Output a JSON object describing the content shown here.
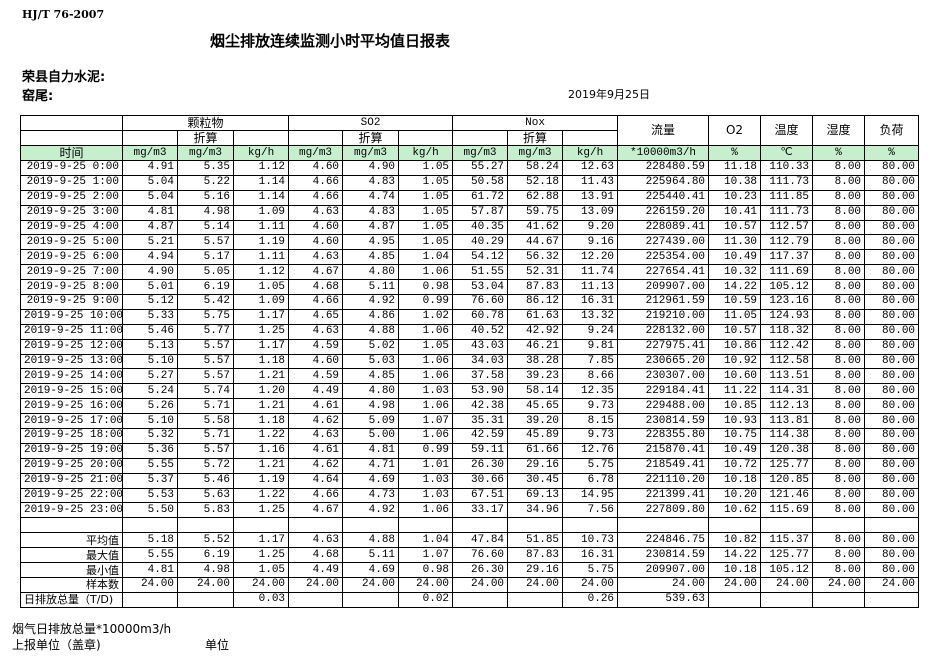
{
  "header": {
    "standard": "HJ/T  76-2007",
    "title": "烟尘排放连续监测小时平均值日报表",
    "company": "荣县自力水泥:",
    "location": "窑尾:",
    "date": "2019年9月25日"
  },
  "columns": {
    "groups": [
      "颗粒物",
      "SO2",
      "Nox"
    ],
    "converted": "折算",
    "flow": "流量",
    "o2": "O2",
    "temp": "温度",
    "humidity": "湿度",
    "load": "负荷",
    "time": "时间",
    "units": [
      "mg/m3",
      "mg/m3",
      "kg/h",
      "mg/m3",
      "mg/m3",
      "kg/h",
      "mg/m3",
      "mg/m3",
      "kg/h",
      "*10000m3/h",
      "%",
      "℃",
      "%",
      "%"
    ]
  },
  "rows": [
    [
      "2019-9-25 0:00",
      "4.91",
      "5.35",
      "1.12",
      "4.60",
      "4.90",
      "1.05",
      "55.27",
      "58.24",
      "12.63",
      "228480.59",
      "11.18",
      "110.33",
      "8.00",
      "80.00"
    ],
    [
      "2019-9-25 1:00",
      "5.04",
      "5.22",
      "1.14",
      "4.66",
      "4.83",
      "1.05",
      "50.58",
      "52.18",
      "11.43",
      "225964.80",
      "10.38",
      "111.73",
      "8.00",
      "80.00"
    ],
    [
      "2019-9-25 2:00",
      "5.04",
      "5.16",
      "1.14",
      "4.66",
      "4.74",
      "1.05",
      "61.72",
      "62.88",
      "13.91",
      "225440.41",
      "10.23",
      "111.85",
      "8.00",
      "80.00"
    ],
    [
      "2019-9-25 3:00",
      "4.81",
      "4.98",
      "1.09",
      "4.63",
      "4.83",
      "1.05",
      "57.87",
      "59.75",
      "13.09",
      "226159.20",
      "10.41",
      "111.73",
      "8.00",
      "80.00"
    ],
    [
      "2019-9-25 4:00",
      "4.87",
      "5.14",
      "1.11",
      "4.60",
      "4.87",
      "1.05",
      "40.35",
      "41.62",
      "9.20",
      "228089.41",
      "10.57",
      "112.57",
      "8.00",
      "80.00"
    ],
    [
      "2019-9-25 5:00",
      "5.21",
      "5.57",
      "1.19",
      "4.60",
      "4.95",
      "1.05",
      "40.29",
      "44.67",
      "9.16",
      "227439.00",
      "11.30",
      "112.79",
      "8.00",
      "80.00"
    ],
    [
      "2019-9-25 6:00",
      "4.94",
      "5.17",
      "1.11",
      "4.63",
      "4.85",
      "1.04",
      "54.12",
      "56.32",
      "12.20",
      "225354.00",
      "10.49",
      "117.37",
      "8.00",
      "80.00"
    ],
    [
      "2019-9-25 7:00",
      "4.90",
      "5.05",
      "1.12",
      "4.67",
      "4.80",
      "1.06",
      "51.55",
      "52.31",
      "11.74",
      "227654.41",
      "10.32",
      "111.69",
      "8.00",
      "80.00"
    ],
    [
      "2019-9-25 8:00",
      "5.01",
      "6.19",
      "1.05",
      "4.68",
      "5.11",
      "0.98",
      "53.04",
      "87.83",
      "11.13",
      "209907.00",
      "14.22",
      "105.12",
      "8.00",
      "80.00"
    ],
    [
      "2019-9-25 9:00",
      "5.12",
      "5.42",
      "1.09",
      "4.66",
      "4.92",
      "0.99",
      "76.60",
      "86.12",
      "16.31",
      "212961.59",
      "10.59",
      "123.16",
      "8.00",
      "80.00"
    ],
    [
      "2019-9-25 10:00",
      "5.33",
      "5.75",
      "1.17",
      "4.65",
      "4.86",
      "1.02",
      "60.78",
      "61.63",
      "13.32",
      "219210.00",
      "11.05",
      "124.93",
      "8.00",
      "80.00"
    ],
    [
      "2019-9-25 11:00",
      "5.46",
      "5.77",
      "1.25",
      "4.63",
      "4.88",
      "1.06",
      "40.52",
      "42.92",
      "9.24",
      "228132.00",
      "10.57",
      "118.32",
      "8.00",
      "80.00"
    ],
    [
      "2019-9-25 12:00",
      "5.13",
      "5.57",
      "1.17",
      "4.59",
      "5.02",
      "1.05",
      "43.03",
      "46.21",
      "9.81",
      "227975.41",
      "10.86",
      "112.42",
      "8.00",
      "80.00"
    ],
    [
      "2019-9-25 13:00",
      "5.10",
      "5.57",
      "1.18",
      "4.60",
      "5.03",
      "1.06",
      "34.03",
      "38.28",
      "7.85",
      "230665.20",
      "10.92",
      "112.58",
      "8.00",
      "80.00"
    ],
    [
      "2019-9-25 14:00",
      "5.27",
      "5.57",
      "1.21",
      "4.59",
      "4.85",
      "1.06",
      "37.58",
      "39.23",
      "8.66",
      "230307.00",
      "10.60",
      "113.51",
      "8.00",
      "80.00"
    ],
    [
      "2019-9-25 15:00",
      "5.24",
      "5.74",
      "1.20",
      "4.49",
      "4.80",
      "1.03",
      "53.90",
      "58.14",
      "12.35",
      "229184.41",
      "11.22",
      "114.31",
      "8.00",
      "80.00"
    ],
    [
      "2019-9-25 16:00",
      "5.26",
      "5.71",
      "1.21",
      "4.61",
      "4.98",
      "1.06",
      "42.38",
      "45.65",
      "9.73",
      "229488.00",
      "10.85",
      "112.13",
      "8.00",
      "80.00"
    ],
    [
      "2019-9-25 17:00",
      "5.10",
      "5.58",
      "1.18",
      "4.62",
      "5.09",
      "1.07",
      "35.31",
      "39.20",
      "8.15",
      "230814.59",
      "10.93",
      "113.81",
      "8.00",
      "80.00"
    ],
    [
      "2019-9-25 18:00",
      "5.32",
      "5.71",
      "1.22",
      "4.63",
      "5.00",
      "1.06",
      "42.59",
      "45.89",
      "9.73",
      "228355.80",
      "10.75",
      "114.38",
      "8.00",
      "80.00"
    ],
    [
      "2019-9-25 19:00",
      "5.36",
      "5.57",
      "1.16",
      "4.61",
      "4.81",
      "0.99",
      "59.11",
      "61.66",
      "12.76",
      "215870.41",
      "10.49",
      "120.38",
      "8.00",
      "80.00"
    ],
    [
      "2019-9-25 20:00",
      "5.55",
      "5.72",
      "1.21",
      "4.62",
      "4.71",
      "1.01",
      "26.30",
      "29.16",
      "5.75",
      "218549.41",
      "10.72",
      "125.77",
      "8.00",
      "80.00"
    ],
    [
      "2019-9-25 21:00",
      "5.37",
      "5.46",
      "1.19",
      "4.64",
      "4.69",
      "1.03",
      "30.66",
      "30.45",
      "6.78",
      "221110.20",
      "10.18",
      "120.85",
      "8.00",
      "80.00"
    ],
    [
      "2019-9-25 22:00",
      "5.53",
      "5.63",
      "1.22",
      "4.66",
      "4.73",
      "1.03",
      "67.51",
      "69.13",
      "14.95",
      "221399.41",
      "10.20",
      "121.46",
      "8.00",
      "80.00"
    ],
    [
      "2019-9-25 23:00",
      "5.50",
      "5.83",
      "1.25",
      "4.67",
      "4.92",
      "1.06",
      "33.17",
      "34.96",
      "7.56",
      "227809.80",
      "10.62",
      "115.69",
      "8.00",
      "80.00"
    ]
  ],
  "summary": [
    [
      "平均值",
      "5.18",
      "5.52",
      "1.17",
      "4.63",
      "4.88",
      "1.04",
      "47.84",
      "51.85",
      "10.73",
      "224846.75",
      "10.82",
      "115.37",
      "8.00",
      "80.00"
    ],
    [
      "最大值",
      "5.55",
      "6.19",
      "1.25",
      "4.68",
      "5.11",
      "1.07",
      "76.60",
      "87.83",
      "16.31",
      "230814.59",
      "14.22",
      "125.77",
      "8.00",
      "80.00"
    ],
    [
      "最小值",
      "4.81",
      "4.98",
      "1.05",
      "4.49",
      "4.69",
      "0.98",
      "26.30",
      "29.16",
      "5.75",
      "209907.00",
      "10.18",
      "105.12",
      "8.00",
      "80.00"
    ],
    [
      "样本数",
      "24.00",
      "24.00",
      "24.00",
      "24.00",
      "24.00",
      "24.00",
      "24.00",
      "24.00",
      "24.00",
      "24.00",
      "24.00",
      "24.00",
      "24.00",
      "24.00"
    ],
    [
      "日排放总量（T/D)",
      "",
      "",
      "0.03",
      "",
      "",
      "0.02",
      "",
      "",
      "0.26",
      "539.63",
      "",
      "",
      "",
      ""
    ]
  ],
  "footer": {
    "flue_total": "烟气日排放总量*10000m3/h",
    "reporting_unit": "上报单位（盖章)",
    "unit": "单位"
  },
  "colors": {
    "unit_row_bg": "#c6efce"
  }
}
